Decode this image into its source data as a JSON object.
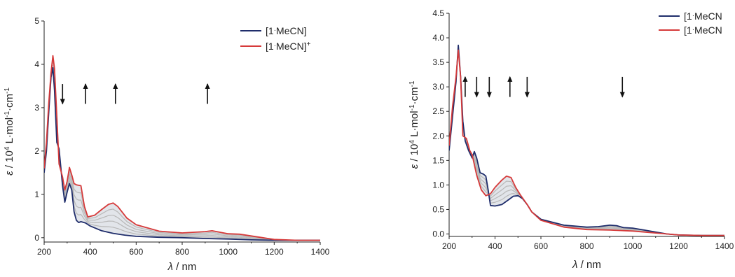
{
  "colors": {
    "blue": "#1f2d6b",
    "red": "#d63a3a",
    "grey": "#b8b8b8",
    "fill": "#bfc5d1",
    "axis": "#222222"
  },
  "chart_data": [
    {
      "type": "line",
      "xlabel": {
        "symbol": "λ",
        "unit": " / nm"
      },
      "ylabel": {
        "symbol": "ε",
        "text": " / 10",
        "sup1": "4",
        "mid": " L",
        "dot1": "·",
        "mid2": "mol",
        "sup2": "-1",
        "dot2": "·",
        "mid3": "cm",
        "sup3": "-1"
      },
      "xlim": [
        200,
        1400
      ],
      "ylim": [
        -0.1,
        5.0
      ],
      "xticks": [
        200,
        400,
        600,
        800,
        1000,
        1200,
        1400
      ],
      "xtick_labels": [
        "200",
        "400",
        "600",
        "800",
        "1000",
        "1200",
        "1400"
      ],
      "yticks": [
        0,
        1,
        2,
        3,
        4,
        5
      ],
      "ytick_labels": [
        "0",
        "1",
        "2",
        "3",
        "4",
        "5"
      ],
      "legend": [
        {
          "base": "[1",
          "dot": "·",
          "rest": "MeCN]",
          "sup": "",
          "color": "blue"
        },
        {
          "base": "[1",
          "dot": "·",
          "rest": "MeCN]",
          "sup": "+",
          "color": "red"
        }
      ],
      "legend_position": "top-right",
      "arrows": [
        {
          "x": 280,
          "direction": "down"
        },
        {
          "x": 380,
          "direction": "up"
        },
        {
          "x": 510,
          "direction": "up"
        },
        {
          "x": 910,
          "direction": "up"
        }
      ],
      "series": [
        {
          "name": "[1·MeCN]",
          "color": "blue",
          "x": [
            200,
            210,
            220,
            230,
            238,
            245,
            255,
            265,
            280,
            290,
            300,
            310,
            320,
            330,
            340,
            350,
            360,
            380,
            400,
            450,
            500,
            550,
            600,
            700,
            800,
            900,
            1000,
            1100,
            1200,
            1300,
            1400
          ],
          "y": [
            1.5,
            2.0,
            2.9,
            3.7,
            3.92,
            3.4,
            2.2,
            2.05,
            1.2,
            0.82,
            1.05,
            1.25,
            1.1,
            0.6,
            0.4,
            0.35,
            0.37,
            0.34,
            0.27,
            0.16,
            0.1,
            0.06,
            0.03,
            0.01,
            0.0,
            -0.02,
            -0.03,
            -0.05,
            -0.06,
            -0.06,
            -0.06
          ]
        },
        {
          "name": "[1·MeCN]+",
          "color": "red",
          "x": [
            200,
            210,
            220,
            230,
            238,
            245,
            255,
            265,
            280,
            290,
            300,
            310,
            320,
            330,
            340,
            360,
            375,
            390,
            420,
            450,
            480,
            500,
            520,
            560,
            600,
            700,
            800,
            900,
            930,
            960,
            1000,
            1050,
            1100,
            1150,
            1200,
            1300,
            1400
          ],
          "y": [
            1.6,
            2.2,
            3.1,
            3.8,
            4.2,
            3.9,
            2.8,
            1.7,
            1.4,
            1.1,
            1.3,
            1.62,
            1.45,
            1.25,
            1.22,
            1.2,
            0.72,
            0.48,
            0.52,
            0.65,
            0.77,
            0.8,
            0.72,
            0.45,
            0.3,
            0.15,
            0.11,
            0.14,
            0.16,
            0.13,
            0.09,
            0.08,
            0.04,
            0.0,
            -0.04,
            -0.06,
            -0.06
          ]
        }
      ],
      "intermediates": [
        0.2,
        0.4,
        0.6,
        0.8
      ]
    },
    {
      "type": "line",
      "xlabel": {
        "symbol": "λ",
        "unit": " / nm"
      },
      "ylabel": {
        "symbol": "ε",
        "text": " / 10",
        "sup1": "4",
        "mid": " L",
        "dot1": "·",
        "mid2": "mol",
        "sup2": "-1",
        "dot2": "·",
        "mid3": "cm",
        "sup3": "-1"
      },
      "xlim": [
        200,
        1400
      ],
      "ylim": [
        -0.05,
        4.5
      ],
      "xticks": [
        200,
        400,
        600,
        800,
        1000,
        1200,
        1400
      ],
      "xtick_labels": [
        "200",
        "400",
        "600",
        "800",
        "1000",
        "1200",
        "1400"
      ],
      "yticks": [
        0.0,
        0.5,
        1.0,
        1.5,
        2.0,
        2.5,
        3.0,
        3.5,
        4.0,
        4.5
      ],
      "ytick_labels": [
        "0.0",
        "0.5",
        "1.0",
        "1.5",
        "2.0",
        "2.5",
        "3.0",
        "3.5",
        "4.0",
        "4.5"
      ],
      "legend": [
        {
          "base": "[1",
          "dot": "·",
          "rest": "MeCN",
          "sup": "",
          "color": "blue"
        },
        {
          "base": "[1",
          "dot": "·",
          "rest": "MeCN",
          "sup": "",
          "color": "red"
        }
      ],
      "legend_position": "top-right",
      "arrows": [
        {
          "x": 270,
          "direction": "up"
        },
        {
          "x": 320,
          "direction": "down"
        },
        {
          "x": 375,
          "direction": "down"
        },
        {
          "x": 465,
          "direction": "up"
        },
        {
          "x": 540,
          "direction": "down"
        },
        {
          "x": 955,
          "direction": "down"
        }
      ],
      "series": [
        {
          "name": "[1·MeCN",
          "color": "blue",
          "x": [
            200,
            215,
            230,
            240,
            250,
            260,
            270,
            285,
            300,
            310,
            320,
            335,
            350,
            360,
            370,
            380,
            400,
            430,
            460,
            480,
            500,
            520,
            540,
            560,
            600,
            700,
            800,
            850,
            900,
            930,
            960,
            1000,
            1050,
            1100,
            1150,
            1200,
            1300,
            1400
          ],
          "y": [
            1.7,
            2.4,
            3.1,
            3.85,
            3.2,
            2.3,
            1.9,
            1.7,
            1.55,
            1.68,
            1.55,
            1.25,
            1.22,
            1.18,
            0.9,
            0.58,
            0.57,
            0.6,
            0.7,
            0.77,
            0.78,
            0.72,
            0.6,
            0.45,
            0.3,
            0.18,
            0.14,
            0.15,
            0.18,
            0.17,
            0.13,
            0.12,
            0.08,
            0.04,
            0.0,
            -0.02,
            -0.03,
            -0.03
          ]
        },
        {
          "name": "[1·MeCN",
          "color": "red",
          "x": [
            200,
            215,
            230,
            240,
            250,
            260,
            275,
            290,
            300,
            320,
            340,
            360,
            380,
            400,
            430,
            450,
            470,
            490,
            510,
            540,
            560,
            600,
            700,
            800,
            900,
            1000,
            1100,
            1150,
            1200,
            1300,
            1400
          ],
          "y": [
            1.8,
            2.6,
            3.2,
            3.75,
            3.2,
            2.0,
            1.95,
            1.7,
            1.62,
            1.2,
            0.9,
            0.78,
            0.82,
            0.95,
            1.1,
            1.18,
            1.15,
            0.95,
            0.8,
            0.6,
            0.45,
            0.28,
            0.14,
            0.09,
            0.08,
            0.06,
            0.02,
            0.0,
            -0.02,
            -0.03,
            -0.03
          ]
        }
      ],
      "intermediates": [
        0.2,
        0.4,
        0.6,
        0.8
      ]
    }
  ]
}
